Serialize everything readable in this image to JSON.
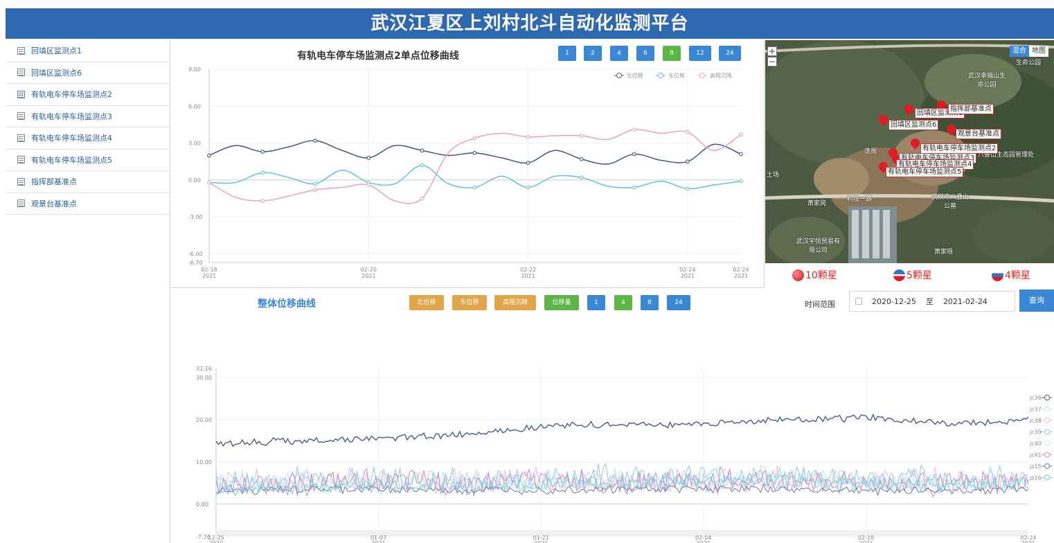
{
  "header": {
    "title": "武汉江夏区上刘村北斗自动化监测平台"
  },
  "sidebar": {
    "items": [
      {
        "label": "回填区监测点1"
      },
      {
        "label": "回填区监测点6"
      },
      {
        "label": "有轨电车停车场监测点2"
      },
      {
        "label": "有轨电车停车场监测点3"
      },
      {
        "label": "有轨电车停车场监测点4"
      },
      {
        "label": "有轨电车停车场监测点5"
      },
      {
        "label": "指挥部基准点"
      },
      {
        "label": "观景台基准点"
      }
    ]
  },
  "top_panel": {
    "title": "有轨电车停车场监测点2单点位移曲线",
    "range_buttons": [
      "1",
      "2",
      "4",
      "6",
      "8",
      "12",
      "24"
    ],
    "active_button": "8"
  },
  "map": {
    "zoom_in": "+",
    "zoom_out": "−",
    "type_hybrid": "混合",
    "type_map": "地图",
    "place_labels": [
      "武汉幸福山生命公园",
      "武汉市八叠山公墓",
      "武汉宇恒贸易有限公司",
      "八叠山生态园管理处",
      "土场",
      "萧家岗",
      "科技一路",
      "萧家咀",
      "莲阁",
      "生命公园"
    ],
    "markers": [
      "回填区监测点1",
      "回填区监测点6",
      "指挥部基准点",
      "观景台基准点",
      "有轨电车停车场监测点2",
      "有轨电车停车场监测点3",
      "有轨电车停车场监测点4",
      "有轨电车停车场监测点5"
    ],
    "satellites": [
      {
        "label": "10颗星",
        "color": "#e01c22"
      },
      {
        "label": "5颗星",
        "color": "#3d6fb6"
      },
      {
        "label": "4颗星",
        "color": "#3d6fb6"
      }
    ]
  },
  "bottom_panel": {
    "title": "整体位移曲线",
    "metric_buttons": [
      "北位移",
      "东位移",
      "高程沉降",
      "位移量"
    ],
    "active_metric": "位移量",
    "range_buttons": [
      "1",
      "4",
      "8",
      "24"
    ],
    "active_range": "4",
    "time_range_label": "时间范围",
    "start_date": "2020-12-25",
    "to_label": "至",
    "end_date": "2021-02-24",
    "query_label": "查询"
  },
  "chart_data": [
    {
      "type": "line",
      "title": "有轨电车停车场监测点2单点位移曲线",
      "legend_position": "top-right",
      "ylim": [
        -6.7,
        9.0
      ],
      "y_ticks": [
        "9.00",
        "6.00",
        "3.00",
        "0.00",
        "-3.00",
        "-6.00",
        "-6.70"
      ],
      "x_ticks": [
        {
          "date": "02-18",
          "year": "2021",
          "x": 0
        },
        {
          "date": "02-20",
          "year": "2021",
          "x": 2
        },
        {
          "date": "02-22",
          "year": "2021",
          "x": 4
        },
        {
          "date": "02-24",
          "year": "2021",
          "x": 6
        },
        {
          "date": "02-24",
          "year": "2021",
          "x": 6.67
        }
      ],
      "x": [
        0,
        0.33,
        0.67,
        1.0,
        1.33,
        1.67,
        2.0,
        2.33,
        2.67,
        3.0,
        3.33,
        3.67,
        4.0,
        4.33,
        4.67,
        5.0,
        5.33,
        5.67,
        6.0,
        6.33,
        6.67
      ],
      "series": [
        {
          "name": "北位移",
          "color": "#4c5f80",
          "values": [
            2.0,
            2.8,
            2.3,
            2.7,
            3.2,
            2.4,
            1.8,
            2.8,
            2.4,
            2.0,
            2.2,
            1.8,
            1.4,
            2.4,
            1.7,
            1.3,
            2.1,
            1.6,
            1.5,
            2.9,
            2.1
          ]
        },
        {
          "name": "东位移",
          "color": "#6ec3d8",
          "values": [
            -0.2,
            -0.2,
            0.6,
            0.2,
            -0.3,
            0.8,
            -0.2,
            -0.3,
            1.2,
            -0.3,
            -0.6,
            0.3,
            -0.6,
            0.3,
            0.2,
            -0.5,
            -0.6,
            -0.1,
            -0.7,
            -0.4,
            -0.1
          ]
        },
        {
          "name": "高程沉降",
          "color": "#e5a6cc",
          "values": [
            -0.2,
            -1.4,
            -1.7,
            -1.3,
            -0.8,
            -0.6,
            -0.4,
            -1.7,
            -1.5,
            2.2,
            3.4,
            3.8,
            3.5,
            3.6,
            3.6,
            3.3,
            4.1,
            3.8,
            3.9,
            2.4,
            3.7
          ]
        }
      ]
    },
    {
      "type": "line",
      "title": "整体位移曲线",
      "legend_position": "right",
      "ylim": [
        -7.76,
        32.16
      ],
      "y_ticks": [
        "32.16",
        "30.00",
        "20.00",
        "10.00",
        "0.00",
        "-7.76"
      ],
      "x_ticks": [
        {
          "date": "12-25",
          "year": "2020"
        },
        {
          "date": "01-07",
          "year": "2021"
        },
        {
          "date": "01-21",
          "year": "2021"
        },
        {
          "date": "02-04",
          "year": "2021"
        },
        {
          "date": "02-18",
          "year": "2021"
        },
        {
          "date": "02-24",
          "year": "2021"
        }
      ],
      "x_range": [
        "2020-12-25",
        "2021-02-24"
      ],
      "series": [
        {
          "name": "jc36",
          "color": "#4c5f80",
          "baseline": [
            14.5,
            15.0,
            15.5,
            16.5,
            18.5,
            18.8,
            19.0,
            20.0,
            20.5,
            19.0,
            20.0
          ],
          "noise": 1.0
        },
        {
          "name": "jc37",
          "color": "#c3e4ef",
          "baseline": [
            5.0,
            5.5,
            5.0,
            5.5,
            5.5,
            5.5,
            6.0,
            6.0,
            5.5,
            5.0,
            5.5
          ],
          "noise": 3.5
        },
        {
          "name": "jc38",
          "color": "#e8bfd9",
          "baseline": [
            5.5,
            6.0,
            5.5,
            5.5,
            6.0,
            5.5,
            5.8,
            6.2,
            5.8,
            5.5,
            6.0
          ],
          "noise": 3.5
        },
        {
          "name": "jc39",
          "color": "#8fd0e0",
          "baseline": [
            5.0,
            5.5,
            6.0,
            5.5,
            6.0,
            6.5,
            6.5,
            6.5,
            5.8,
            5.5,
            6.0
          ],
          "noise": 3.8
        },
        {
          "name": "jc40",
          "color": "#d0ecf4",
          "baseline": [
            4.5,
            5.0,
            5.0,
            5.0,
            5.0,
            5.0,
            5.5,
            5.5,
            5.0,
            5.0,
            5.0
          ],
          "noise": 2.5
        },
        {
          "name": "jc41",
          "color": "#c890c8",
          "baseline": [
            4.5,
            5.0,
            5.5,
            5.0,
            5.5,
            5.0,
            5.5,
            5.5,
            5.0,
            4.8,
            5.0
          ],
          "noise": 3.5
        },
        {
          "name": "jz15",
          "color": "#6d7f9e",
          "baseline": [
            3.0,
            3.5,
            3.5,
            3.2,
            3.5,
            3.5,
            3.8,
            3.5,
            3.2,
            3.2,
            3.5
          ],
          "noise": 1.2
        },
        {
          "name": "jz16",
          "color": "#7cc8dc",
          "baseline": [
            3.5,
            4.0,
            4.5,
            4.5,
            4.5,
            5.0,
            5.5,
            5.5,
            5.0,
            4.5,
            4.8
          ],
          "noise": 2.0
        }
      ]
    }
  ]
}
